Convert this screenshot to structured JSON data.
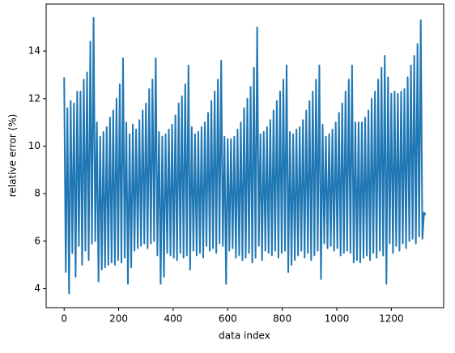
{
  "chart_data": {
    "type": "line",
    "xlabel": "data index",
    "ylabel": "relative error (%)",
    "x": [
      0,
      6,
      12,
      18,
      24,
      30,
      36,
      42,
      48,
      54,
      60,
      66,
      72,
      78,
      84,
      90,
      96,
      102,
      108,
      114,
      120,
      126,
      132,
      138,
      144,
      150,
      156,
      162,
      168,
      174,
      180,
      186,
      192,
      198,
      204,
      210,
      216,
      222,
      228,
      234,
      240,
      246,
      252,
      258,
      264,
      270,
      276,
      282,
      288,
      294,
      300,
      306,
      312,
      318,
      324,
      330,
      336,
      342,
      348,
      354,
      360,
      366,
      372,
      378,
      384,
      390,
      396,
      402,
      408,
      414,
      420,
      426,
      432,
      438,
      444,
      450,
      456,
      462,
      468,
      474,
      480,
      486,
      492,
      498,
      504,
      510,
      516,
      522,
      528,
      534,
      540,
      546,
      552,
      558,
      564,
      570,
      576,
      582,
      588,
      594,
      600,
      606,
      612,
      618,
      624,
      630,
      636,
      642,
      648,
      654,
      660,
      666,
      672,
      678,
      684,
      690,
      696,
      702,
      708,
      714,
      720,
      726,
      732,
      738,
      744,
      750,
      756,
      762,
      768,
      774,
      780,
      786,
      792,
      798,
      804,
      810,
      816,
      822,
      828,
      834,
      840,
      846,
      852,
      858,
      864,
      870,
      876,
      882,
      888,
      894,
      900,
      906,
      912,
      918,
      924,
      930,
      936,
      942,
      948,
      954,
      960,
      966,
      972,
      978,
      984,
      990,
      996,
      1002,
      1008,
      1014,
      1020,
      1026,
      1032,
      1038,
      1044,
      1050,
      1056,
      1062,
      1068,
      1074,
      1080,
      1086,
      1092,
      1098,
      1104,
      1110,
      1116,
      1122,
      1128,
      1134,
      1140,
      1146,
      1152,
      1158,
      1164,
      1170,
      1176,
      1182,
      1188,
      1194,
      1200,
      1206,
      1212,
      1218,
      1224,
      1230,
      1236,
      1242,
      1248,
      1254,
      1260,
      1266,
      1272,
      1278,
      1284,
      1290,
      1296,
      1302,
      1308,
      1314,
      1320,
      1326
    ],
    "series": [
      {
        "name": "relative error",
        "color": "#1f77b4",
        "values": [
          12.9,
          4.7,
          11.6,
          3.8,
          11.9,
          5.5,
          11.8,
          4.5,
          12.3,
          5.8,
          12.3,
          5.0,
          12.8,
          5.6,
          13.1,
          5.2,
          14.4,
          5.9,
          15.4,
          6.0,
          11.0,
          4.3,
          10.4,
          4.8,
          10.6,
          4.9,
          10.8,
          5.0,
          11.2,
          5.1,
          11.5,
          5.0,
          12.0,
          5.2,
          12.6,
          5.1,
          13.7,
          5.3,
          11.0,
          4.2,
          10.5,
          4.9,
          10.9,
          5.6,
          10.7,
          5.7,
          11.1,
          5.8,
          11.5,
          5.9,
          11.8,
          5.7,
          12.4,
          5.9,
          12.8,
          6.0,
          13.7,
          5.4,
          10.6,
          4.2,
          10.4,
          4.5,
          10.5,
          5.5,
          10.7,
          5.4,
          10.9,
          5.3,
          11.3,
          5.2,
          11.8,
          5.5,
          12.1,
          5.3,
          12.6,
          5.4,
          13.4,
          4.8,
          10.8,
          5.6,
          10.5,
          5.4,
          10.6,
          5.5,
          10.8,
          5.3,
          11.0,
          5.8,
          11.4,
          5.6,
          11.9,
          5.7,
          12.3,
          5.5,
          12.8,
          5.9,
          13.6,
          5.8,
          10.4,
          4.2,
          10.3,
          5.6,
          10.3,
          5.7,
          10.4,
          5.3,
          10.7,
          5.4,
          11.0,
          5.2,
          11.6,
          5.3,
          12.0,
          5.5,
          12.5,
          5.1,
          13.3,
          5.3,
          15.0,
          5.8,
          10.5,
          5.2,
          10.6,
          5.6,
          10.8,
          5.5,
          11.1,
          5.4,
          11.5,
          5.6,
          11.9,
          5.3,
          12.3,
          5.5,
          12.8,
          5.6,
          13.4,
          4.7,
          10.6,
          5.0,
          10.5,
          5.2,
          10.7,
          5.4,
          10.8,
          5.6,
          11.1,
          5.3,
          11.5,
          5.5,
          11.9,
          5.2,
          12.3,
          5.4,
          12.8,
          5.6,
          13.4,
          4.4,
          10.9,
          5.9,
          10.4,
          5.7,
          10.5,
          5.8,
          10.7,
          5.6,
          11.0,
          5.7,
          11.4,
          5.4,
          11.8,
          5.5,
          12.3,
          5.6,
          12.8,
          5.5,
          13.4,
          5.1,
          11.0,
          5.2,
          11.0,
          5.1,
          11.0,
          5.3,
          11.2,
          5.4,
          11.5,
          5.2,
          12.0,
          5.5,
          12.3,
          5.3,
          12.8,
          5.6,
          13.3,
          5.4,
          13.8,
          4.2,
          12.9,
          5.9,
          12.2,
          5.5,
          12.3,
          5.8,
          12.2,
          5.6,
          12.3,
          5.9,
          12.4,
          5.7,
          12.9,
          6.0,
          13.4,
          6.1,
          13.8,
          5.9,
          14.3,
          6.2,
          15.3,
          6.1,
          7.2,
          7.1
        ]
      }
    ],
    "xlim": [
      -66,
      1392
    ],
    "ylim": [
      3.2,
      15.98
    ],
    "xticks": [
      0,
      200,
      400,
      600,
      800,
      1000,
      1200
    ],
    "yticks": [
      4,
      6,
      8,
      10,
      12,
      14
    ],
    "grid": false
  }
}
